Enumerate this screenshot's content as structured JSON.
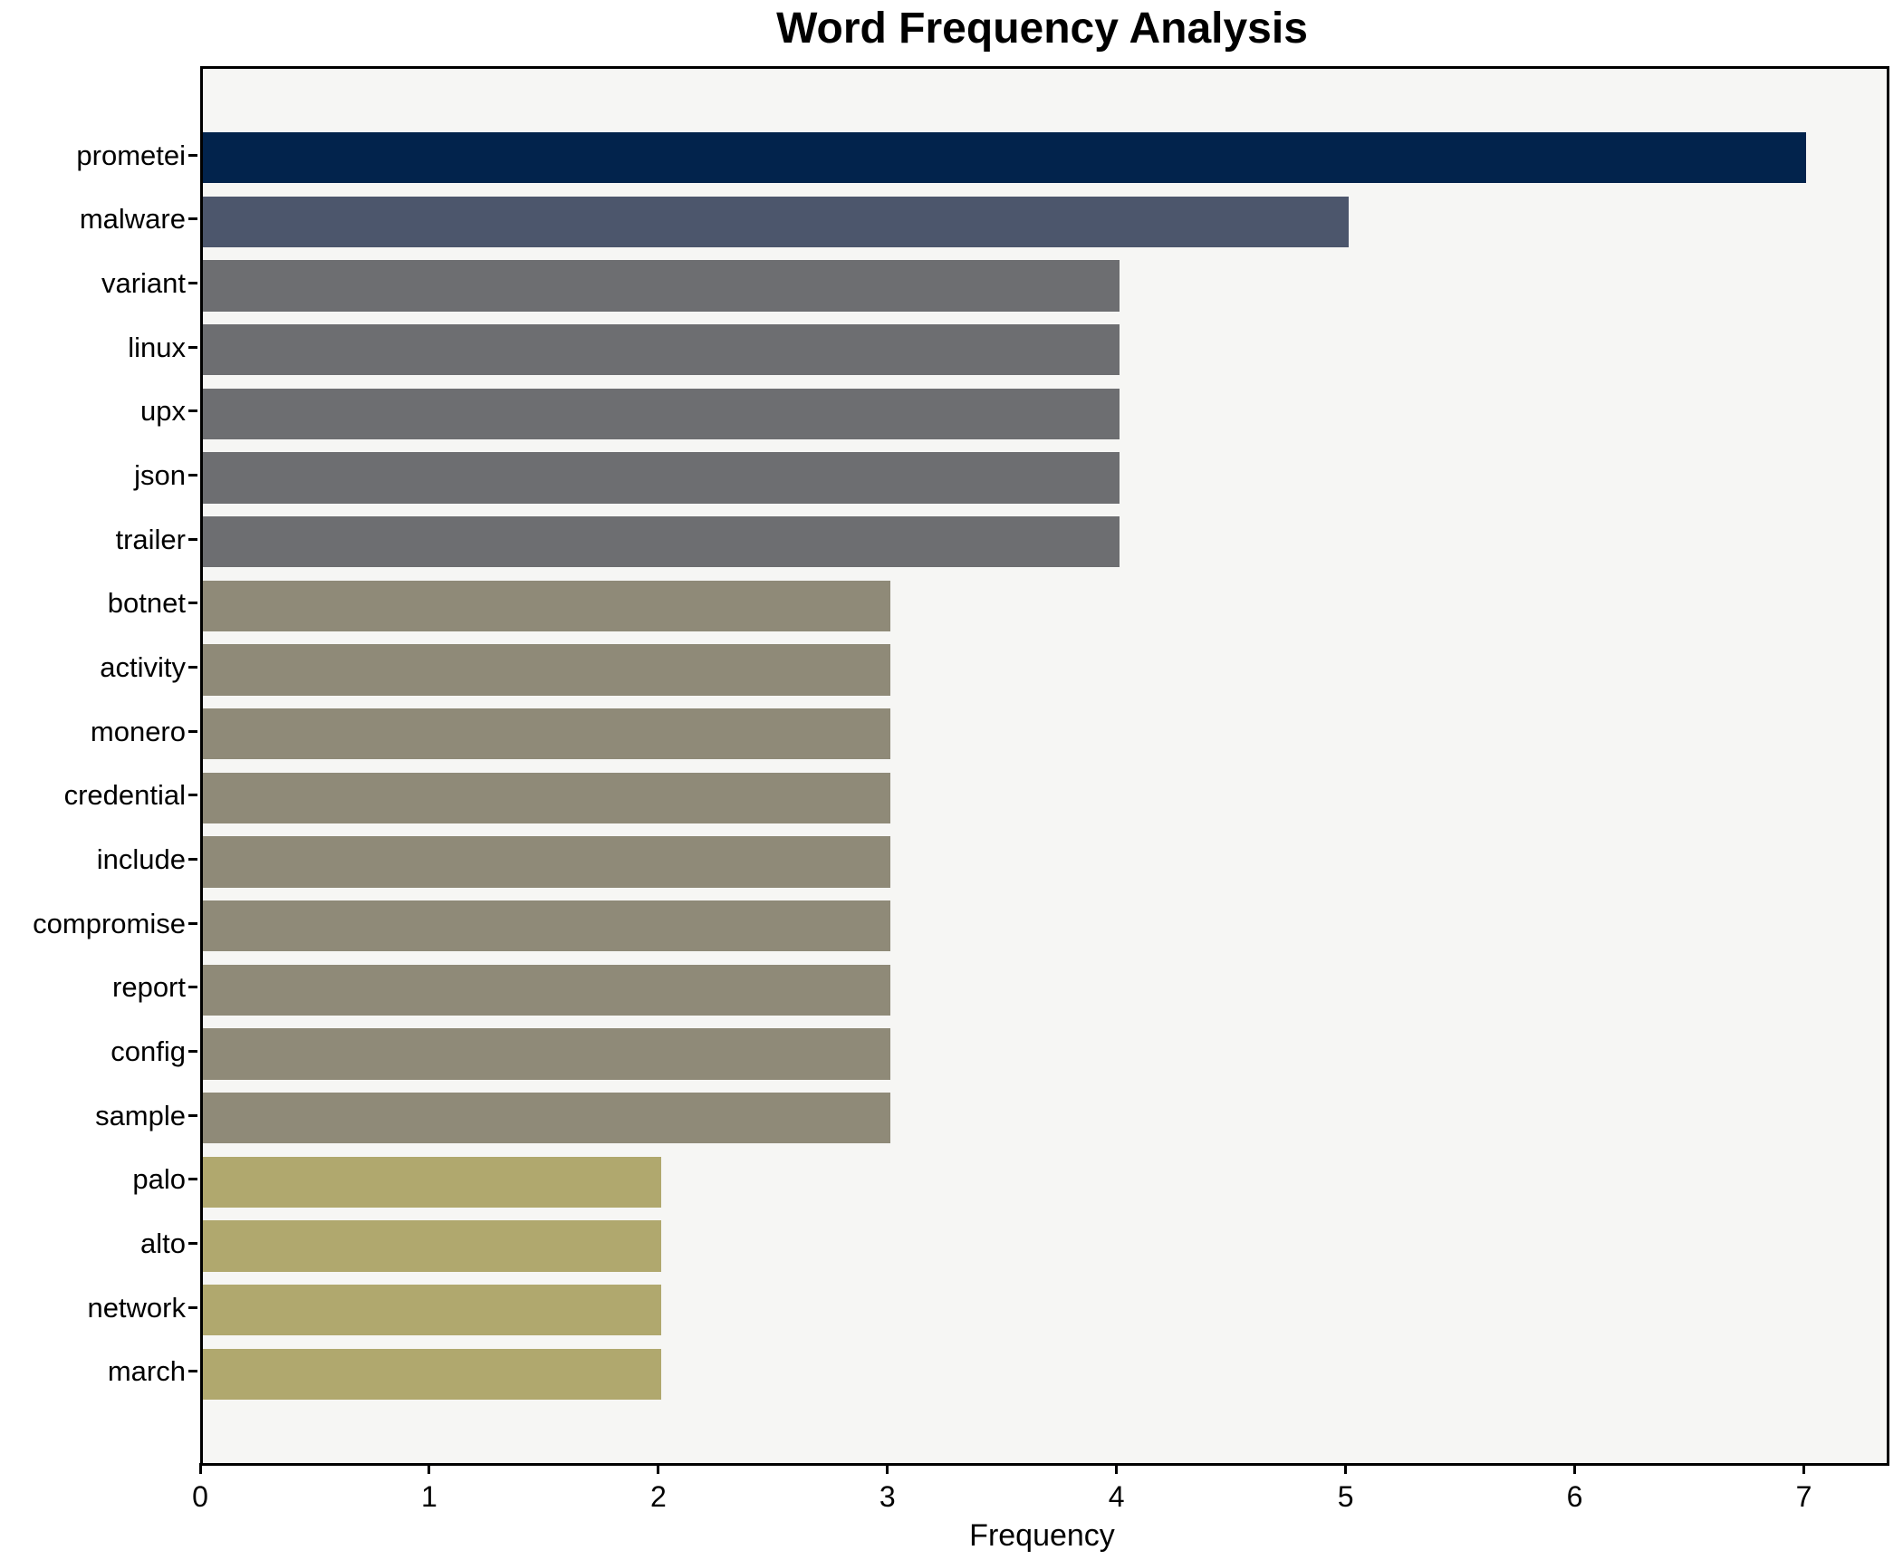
{
  "title": "Word Frequency Analysis",
  "xlabel": "Frequency",
  "chart_data": {
    "type": "bar",
    "orientation": "horizontal",
    "title": "Word Frequency Analysis",
    "xlabel": "Frequency",
    "ylabel": "",
    "xlim": [
      0,
      7.35
    ],
    "x_ticks": [
      0,
      1,
      2,
      3,
      4,
      5,
      6,
      7
    ],
    "grid": false,
    "legend": "none",
    "plot_background": "#f6f6f4",
    "figure_background": "#ffffff",
    "spine_color": "#000000",
    "categories": [
      "prometei",
      "malware",
      "variant",
      "linux",
      "upx",
      "json",
      "trailer",
      "botnet",
      "activity",
      "monero",
      "credential",
      "include",
      "compromise",
      "report",
      "config",
      "sample",
      "palo",
      "alto",
      "network",
      "march"
    ],
    "values": [
      7,
      5,
      4,
      4,
      4,
      4,
      4,
      3,
      3,
      3,
      3,
      3,
      3,
      3,
      3,
      3,
      2,
      2,
      2,
      2
    ],
    "bar_colors": [
      "#02234c",
      "#4c566c",
      "#6d6e71",
      "#6d6e71",
      "#6d6e71",
      "#6d6e71",
      "#6d6e71",
      "#8f8a78",
      "#8f8a78",
      "#8f8a78",
      "#8f8a78",
      "#8f8a78",
      "#8f8a78",
      "#8f8a78",
      "#8f8a78",
      "#8f8a78",
      "#b0a86e",
      "#b0a86e",
      "#b0a86e",
      "#b0a86e"
    ]
  }
}
